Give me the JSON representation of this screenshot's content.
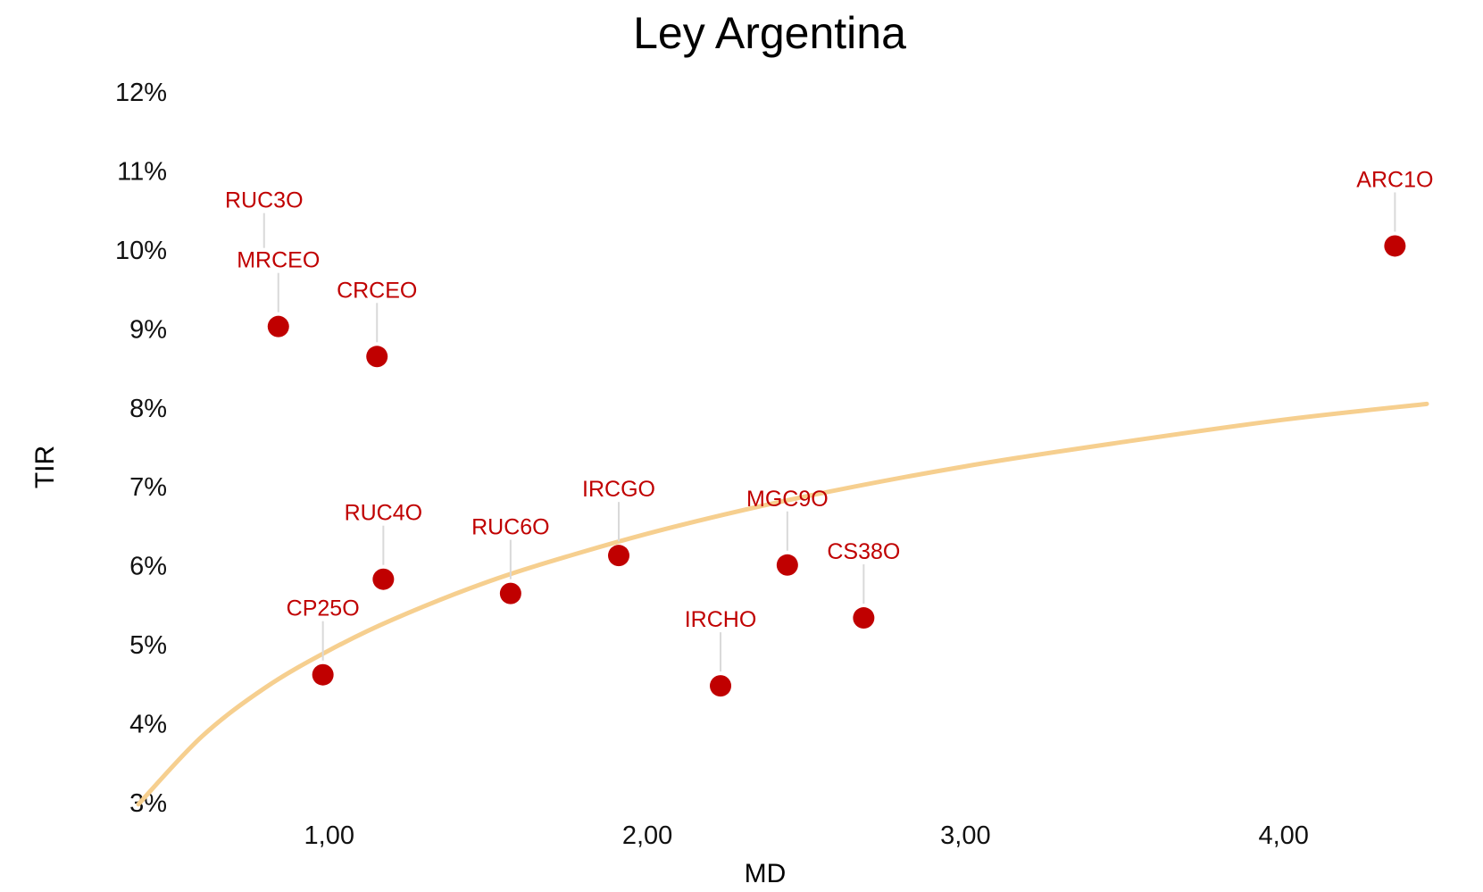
{
  "chart_data": {
    "type": "scatter",
    "title": "Ley Argentina",
    "xlabel": "MD",
    "ylabel": "TIR",
    "xlim": [
      0.4,
      4.45
    ],
    "ylim": [
      3,
      12
    ],
    "x_ticks": [
      {
        "value": 1,
        "label": "1,00"
      },
      {
        "value": 2,
        "label": "2,00"
      },
      {
        "value": 3,
        "label": "3,00"
      },
      {
        "value": 4,
        "label": "4,00"
      }
    ],
    "y_ticks": [
      {
        "value": 3,
        "label": "3%"
      },
      {
        "value": 4,
        "label": "4%"
      },
      {
        "value": 5,
        "label": "5%"
      },
      {
        "value": 6,
        "label": "6%"
      },
      {
        "value": 7,
        "label": "7%"
      },
      {
        "value": 8,
        "label": "8%"
      },
      {
        "value": 9,
        "label": "9%"
      },
      {
        "value": 10,
        "label": "10%"
      },
      {
        "value": 11,
        "label": "11%"
      },
      {
        "value": 12,
        "label": "12%"
      }
    ],
    "grid": false,
    "legend": "none",
    "colors": {
      "points": "#c00000",
      "labels": "#c00000",
      "trendline": "#f6cf8f",
      "leader": "#d9d9d9"
    },
    "points": [
      {
        "name": "CP25O",
        "x": 0.98,
        "y": 4.62
      },
      {
        "name": "RUC4O",
        "x": 1.17,
        "y": 5.83
      },
      {
        "name": "RUC6O",
        "x": 1.57,
        "y": 5.65
      },
      {
        "name": "IRCGO",
        "x": 1.91,
        "y": 6.13
      },
      {
        "name": "IRCHO",
        "x": 2.23,
        "y": 4.48
      },
      {
        "name": "MGC9O",
        "x": 2.44,
        "y": 6.01
      },
      {
        "name": "CS38O",
        "x": 2.68,
        "y": 5.34
      },
      {
        "name": "MRCEO",
        "x": 0.84,
        "y": 9.03
      },
      {
        "name": "RUC3O",
        "x": 0.84,
        "y": 9.03
      },
      {
        "name": "CRCEO",
        "x": 1.15,
        "y": 8.65
      },
      {
        "name": "ARC1O",
        "x": 4.35,
        "y": 10.05
      }
    ],
    "trendline": {
      "type": "logarithmic",
      "samples": [
        {
          "x": 0.4,
          "y": 2.98
        },
        {
          "x": 0.6,
          "y": 3.84
        },
        {
          "x": 0.8,
          "y": 4.46
        },
        {
          "x": 1.0,
          "y": 4.93
        },
        {
          "x": 1.2,
          "y": 5.32
        },
        {
          "x": 1.5,
          "y": 5.8
        },
        {
          "x": 1.8,
          "y": 6.18
        },
        {
          "x": 2.1,
          "y": 6.51
        },
        {
          "x": 2.5,
          "y": 6.88
        },
        {
          "x": 3.0,
          "y": 7.26
        },
        {
          "x": 3.5,
          "y": 7.57
        },
        {
          "x": 4.0,
          "y": 7.85
        },
        {
          "x": 4.45,
          "y": 8.05
        }
      ]
    }
  }
}
